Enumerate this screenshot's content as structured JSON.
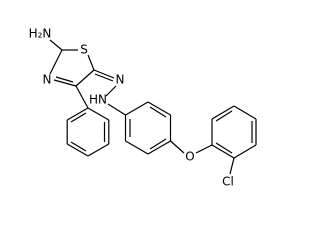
{
  "atoms": {
    "labels": [
      "H₂N",
      "S",
      "N",
      "N",
      "HN",
      "O",
      "Cl"
    ]
  }
}
